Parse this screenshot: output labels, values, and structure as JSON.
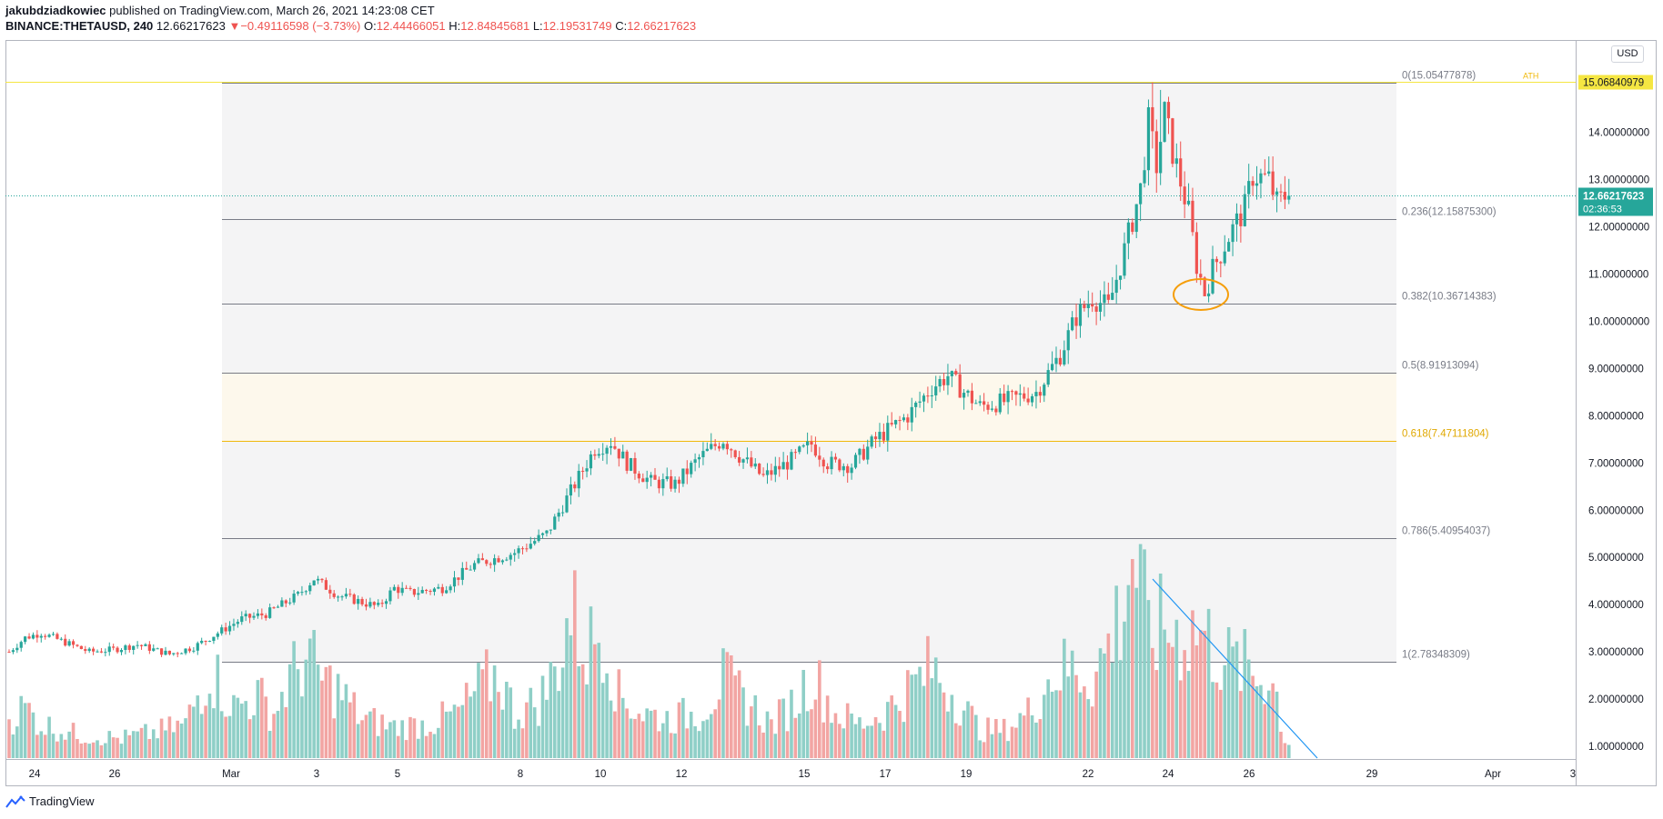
{
  "header": {
    "author": "jakubdziadkowiec",
    "published_text": "published on TradingView.com, March 26, 2021 14:23:08 CET",
    "symbol": "BINANCE:THETAUSD, 240",
    "last": "12.66217623",
    "arrow": "▼",
    "change": "−0.49116598 (−3.73%)",
    "o_label": "O:",
    "o_value": "12.44466051",
    "h_label": "H:",
    "h_value": "12.84845681",
    "l_label": "L:",
    "l_value": "12.19531749",
    "c_label": "C:",
    "c_value": "12.66217623"
  },
  "footer": {
    "brand": "TradingView"
  },
  "currency": "USD",
  "colors": {
    "up": "#26a69a",
    "down": "#ef5350",
    "fib": "#787b86",
    "fib_618": "#f0b90b",
    "ath": "#f5e642",
    "trend": "#2196f3",
    "circle": "#f59e0b"
  },
  "chart_data": {
    "type": "candlestick",
    "timeframe": "240",
    "y_axis": {
      "ticks": [
        "1.00000000",
        "2.00000000",
        "3.00000000",
        "4.00000000",
        "5.00000000",
        "6.00000000",
        "7.00000000",
        "8.00000000",
        "9.00000000",
        "10.00000000",
        "11.00000000",
        "12.00000000",
        "13.00000000",
        "14.00000000"
      ],
      "range": [
        0.8,
        16.2
      ],
      "last_price_label": "12.66217623",
      "countdown": "02:36:53",
      "ath_price_label": "15.06840979"
    },
    "x_axis": {
      "ticks": [
        "24",
        "26",
        "Mar",
        "3",
        "5",
        "8",
        "10",
        "12",
        "15",
        "17",
        "19",
        "22",
        "24",
        "26",
        "29",
        "Apr",
        "3"
      ]
    },
    "fib_levels": [
      {
        "ratio": 0,
        "label": "0(15.05477878)",
        "price": 15.05477878
      },
      {
        "ratio": 0.236,
        "label": "0.236(12.15875300)",
        "price": 12.158753
      },
      {
        "ratio": 0.382,
        "label": "0.382(10.36714383)",
        "price": 10.36714383
      },
      {
        "ratio": 0.5,
        "label": "0.5(8.91913094)",
        "price": 8.91913094
      },
      {
        "ratio": 0.618,
        "label": "0.618(7.47111804)",
        "price": 7.47111804
      },
      {
        "ratio": 0.786,
        "label": "0.786(5.40954037)",
        "price": 5.40954037
      },
      {
        "ratio": 1,
        "label": "1(2.78348309)",
        "price": 2.78348309
      }
    ],
    "ath_label": "ATH",
    "price_anchors": [
      [
        0,
        3.0
      ],
      [
        4,
        3.3
      ],
      [
        8,
        3.4
      ],
      [
        14,
        3.2
      ],
      [
        20,
        3.0
      ],
      [
        26,
        3.05
      ],
      [
        32,
        3.15
      ],
      [
        40,
        2.95
      ],
      [
        46,
        3.1
      ],
      [
        52,
        3.4
      ],
      [
        58,
        3.7
      ],
      [
        64,
        3.8
      ],
      [
        72,
        4.2
      ],
      [
        76,
        4.55
      ],
      [
        82,
        4.2
      ],
      [
        88,
        4.05
      ],
      [
        92,
        3.95
      ],
      [
        96,
        4.35
      ],
      [
        100,
        4.25
      ],
      [
        108,
        4.35
      ],
      [
        116,
        4.85
      ],
      [
        126,
        5.1
      ],
      [
        134,
        5.5
      ],
      [
        140,
        6.4
      ],
      [
        146,
        7.3
      ],
      [
        150,
        7.45
      ],
      [
        154,
        7.0
      ],
      [
        160,
        6.6
      ],
      [
        166,
        6.55
      ],
      [
        172,
        7.1
      ],
      [
        178,
        7.5
      ],
      [
        182,
        7.15
      ],
      [
        188,
        6.7
      ],
      [
        194,
        7.0
      ],
      [
        200,
        7.4
      ],
      [
        204,
        7.0
      ],
      [
        210,
        6.95
      ],
      [
        216,
        7.5
      ],
      [
        224,
        8.0
      ],
      [
        230,
        8.6
      ],
      [
        234,
        8.85
      ],
      [
        238,
        8.5
      ],
      [
        242,
        8.2
      ],
      [
        248,
        8.3
      ],
      [
        256,
        8.5
      ],
      [
        262,
        9.3
      ],
      [
        266,
        10.1
      ],
      [
        270,
        10.5
      ],
      [
        274,
        10.3
      ],
      [
        278,
        11.5
      ],
      [
        282,
        12.8
      ],
      [
        284,
        14.2
      ],
      [
        286,
        13.3
      ],
      [
        288,
        14.4
      ],
      [
        290,
        13.6
      ],
      [
        294,
        12.3
      ],
      [
        296,
        11.2
      ],
      [
        298,
        10.6
      ],
      [
        300,
        11.1
      ],
      [
        304,
        11.8
      ],
      [
        308,
        12.4
      ],
      [
        310,
        13.1
      ],
      [
        314,
        13.0
      ],
      [
        316,
        12.5
      ],
      [
        318,
        12.66
      ]
    ],
    "volume_anchors": [
      [
        0,
        0.7
      ],
      [
        4,
        0.9
      ],
      [
        8,
        0.6
      ],
      [
        18,
        0.4
      ],
      [
        28,
        0.35
      ],
      [
        36,
        0.45
      ],
      [
        44,
        0.6
      ],
      [
        50,
        1.6
      ],
      [
        56,
        0.9
      ],
      [
        62,
        1.1
      ],
      [
        66,
        0.8
      ],
      [
        70,
        1.4
      ],
      [
        74,
        1.8
      ],
      [
        78,
        1.4
      ],
      [
        82,
        1.2
      ],
      [
        88,
        0.7
      ],
      [
        96,
        0.55
      ],
      [
        104,
        0.6
      ],
      [
        112,
        0.8
      ],
      [
        118,
        1.3
      ],
      [
        122,
        1.5
      ],
      [
        126,
        0.8
      ],
      [
        132,
        1.0
      ],
      [
        136,
        1.5
      ],
      [
        140,
        2.6
      ],
      [
        144,
        1.9
      ],
      [
        148,
        2.4
      ],
      [
        152,
        1.1
      ],
      [
        158,
        0.8
      ],
      [
        164,
        0.7
      ],
      [
        172,
        0.8
      ],
      [
        178,
        1.4
      ],
      [
        184,
        1.0
      ],
      [
        190,
        0.6
      ],
      [
        196,
        1.0
      ],
      [
        200,
        1.5
      ],
      [
        206,
        0.8
      ],
      [
        212,
        0.6
      ],
      [
        218,
        0.8
      ],
      [
        224,
        1.2
      ],
      [
        230,
        1.6
      ],
      [
        236,
        1.1
      ],
      [
        242,
        0.5
      ],
      [
        248,
        0.5
      ],
      [
        254,
        0.8
      ],
      [
        260,
        1.5
      ],
      [
        266,
        1.6
      ],
      [
        270,
        1.4
      ],
      [
        274,
        2.0
      ],
      [
        278,
        2.8
      ],
      [
        280,
        3.7
      ],
      [
        284,
        2.2
      ],
      [
        288,
        2.3
      ],
      [
        292,
        2.2
      ],
      [
        296,
        2.3
      ],
      [
        300,
        2.0
      ],
      [
        304,
        1.7
      ],
      [
        308,
        1.6
      ],
      [
        312,
        1.4
      ],
      [
        314,
        1.5
      ],
      [
        316,
        1.1
      ],
      [
        318,
        0.3
      ]
    ],
    "annotations": {
      "trend_line": "descending volume line",
      "ellipse": "circle at 0.382 retracement"
    }
  }
}
